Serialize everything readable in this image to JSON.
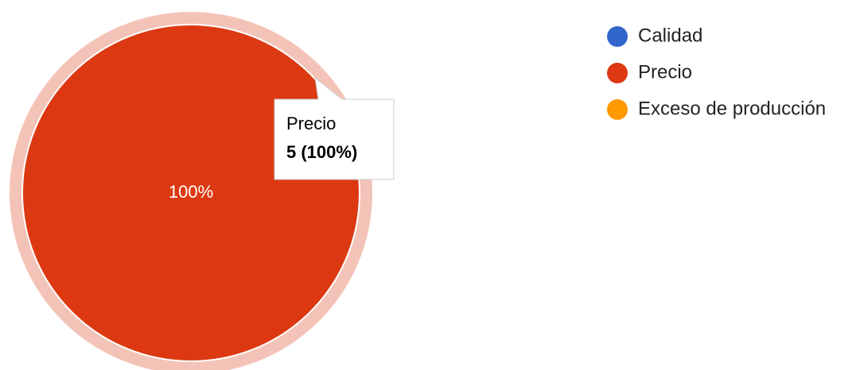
{
  "chart_data": {
    "type": "pie",
    "categories": [
      "Calidad",
      "Precio",
      "Exceso de producción"
    ],
    "values": [
      0,
      100,
      0
    ],
    "value_labels": [
      null,
      "100%",
      null
    ],
    "colors": [
      "#3366cc",
      "#dc3912",
      "#ff9900"
    ],
    "legend": "right",
    "tooltip": {
      "title": "Precio",
      "text": "5 (100%)"
    }
  }
}
